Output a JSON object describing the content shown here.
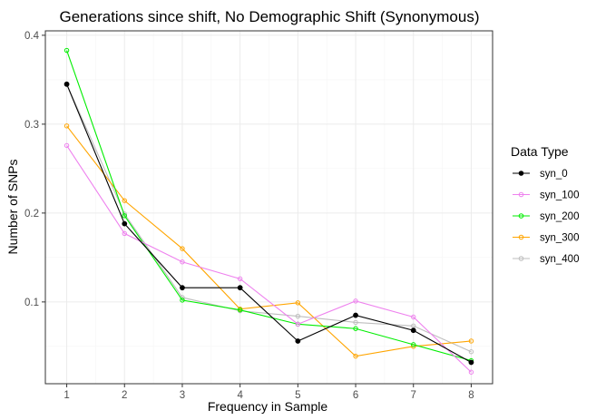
{
  "chart_data": {
    "type": "line",
    "title": "Generations since shift, No Demographic Shift (Synonymous)",
    "xlabel": "Frequency in Sample",
    "ylabel": "Number of SNPs",
    "x": [
      1,
      2,
      3,
      4,
      5,
      6,
      7,
      8
    ],
    "x_ticks": [
      "1",
      "2",
      "3",
      "4",
      "5",
      "6",
      "7",
      "8"
    ],
    "y_ticks": [
      "0.1",
      "0.2",
      "0.3",
      "0.4"
    ],
    "xlim": [
      0.63,
      8.37
    ],
    "ylim": [
      0.008,
      0.405
    ],
    "grid": true,
    "legend": {
      "title": "Data Type",
      "placement": "right"
    },
    "series": [
      {
        "name": "syn_0",
        "color": "#000000",
        "marker": "filled",
        "values": [
          0.345,
          0.188,
          0.116,
          0.116,
          0.056,
          0.085,
          0.068,
          0.032
        ]
      },
      {
        "name": "syn_100",
        "color": "#EE82EE",
        "marker": "open",
        "values": [
          0.276,
          0.177,
          0.145,
          0.126,
          0.075,
          0.101,
          0.083,
          0.021
        ]
      },
      {
        "name": "syn_200",
        "color": "#00EE00",
        "marker": "open",
        "values": [
          0.383,
          0.197,
          0.102,
          0.091,
          0.075,
          0.07,
          0.052,
          0.034
        ]
      },
      {
        "name": "syn_300",
        "color": "#FFA500",
        "marker": "open",
        "values": [
          0.298,
          0.214,
          0.16,
          0.092,
          0.099,
          0.039,
          0.05,
          0.056
        ]
      },
      {
        "name": "syn_400",
        "color": "#BEBEBE",
        "marker": "open",
        "values": [
          0.345,
          0.199,
          0.105,
          0.09,
          0.084,
          0.077,
          0.073,
          0.044
        ]
      }
    ]
  }
}
